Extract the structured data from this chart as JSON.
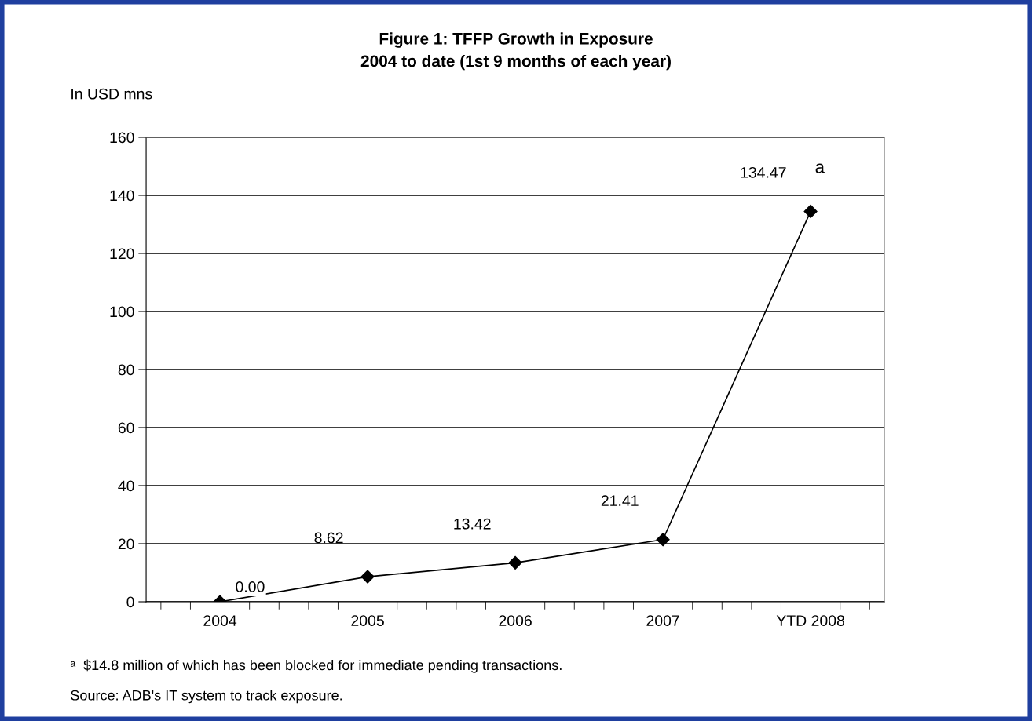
{
  "chart_data": {
    "type": "line",
    "title": "Figure 1: TFFP Growth in Exposure\n2004 to date (1st 9 months of each year)",
    "ylabel": "In USD mns",
    "categories": [
      "2004",
      "2005",
      "2006",
      "2007",
      "YTD 2008"
    ],
    "series": [
      {
        "color": "#000000",
        "values": [
          0.0,
          8.62,
          13.42,
          21.41,
          134.47
        ],
        "value_labels": [
          "0.00",
          "8.62",
          "13.42",
          "21.41",
          "134.47"
        ]
      }
    ],
    "ylim": [
      0,
      160
    ],
    "yticks": [
      0,
      20,
      40,
      60,
      80,
      100,
      120,
      140,
      160
    ],
    "grid": "y",
    "marker": "diamond",
    "line_style": "solid",
    "annotations": [
      {
        "text": "a",
        "x": "YTD 2008",
        "y": 134.47
      },
      "ᵃ  $14.8 million of which has been blocked for immediate pending transactions.",
      "Source: ADB's IT system to track exposure."
    ]
  }
}
